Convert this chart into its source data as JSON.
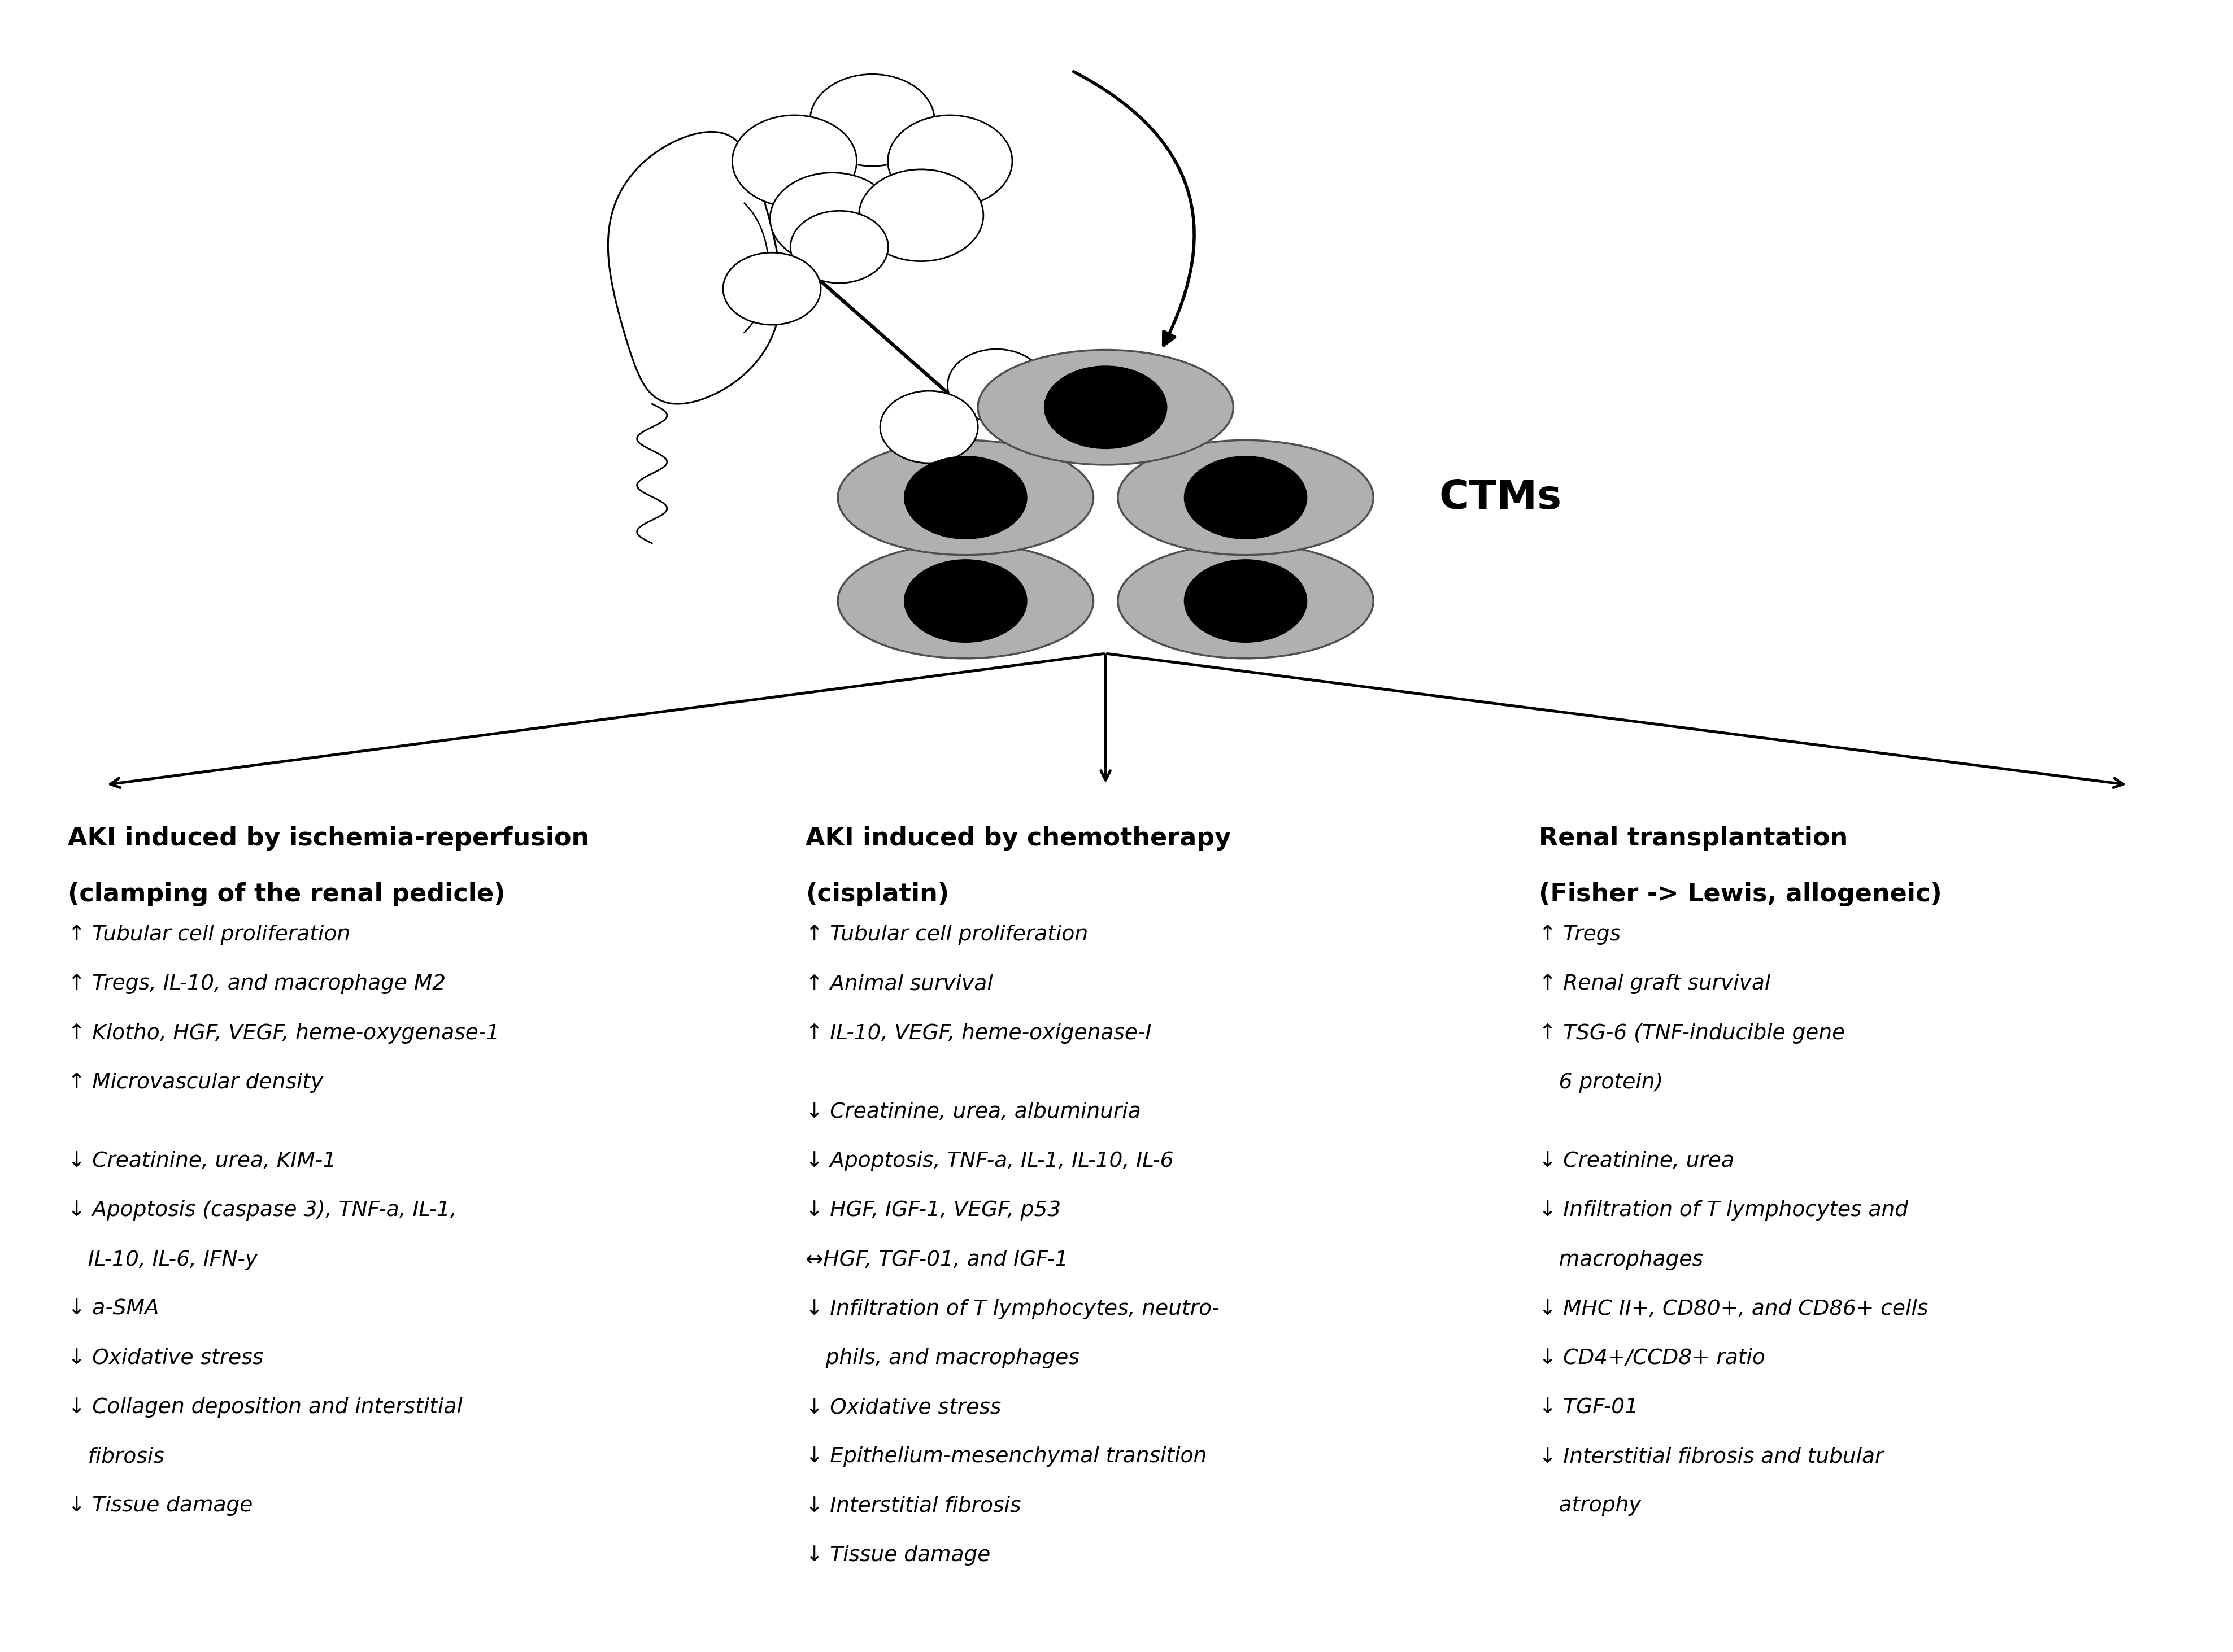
{
  "bg_color": "#ffffff",
  "ctms_label": "CTMs",
  "col1_header_line1": "AKI induced by ischemia-reperfusion",
  "col1_header_line2": "(clamping of the renal pedicle)",
  "col2_header_line1": "AKI induced by chemotherapy",
  "col2_header_line2": "(cisplatin)",
  "col3_header_line1": "Renal transplantation",
  "col3_header_line2": "(Fisher -> Lewis, allogeneic)",
  "col1_up": [
    "↑ Tubular cell proliferation",
    "↑ Tregs, IL-10, and macrophage M2",
    "↑ Klotho, HGF, VEGF, heme-oxygenase-1",
    "↑ Microvascular density"
  ],
  "col1_down": [
    "↓ Creatinine, urea, KIM-1",
    "↓ Apoptosis (caspase 3), TNF-a, IL-1,",
    "   IL-10, IL-6, IFN-y",
    "↓ a-SMA",
    "↓ Oxidative stress",
    "↓ Collagen deposition and interstitial",
    "   fibrosis",
    "↓ Tissue damage"
  ],
  "col2_up": [
    "↑ Tubular cell proliferation",
    "↑ Animal survival",
    "↑ IL-10, VEGF, heme-oxigenase-I"
  ],
  "col2_down": [
    "↓ Creatinine, urea, albuminuria",
    "↓ Apoptosis, TNF-a, IL-1, IL-10, IL-6",
    "↓ HGF, IGF-1, VEGF, p53",
    "↔HGF, TGF-01, and IGF-1",
    "↓ Infiltration of T lymphocytes, neutro-",
    "   phils, and macrophages",
    "↓ Oxidative stress",
    "↓ Epithelium-mesenchymal transition",
    "↓ Interstitial fibrosis",
    "↓ Tissue damage"
  ],
  "col3_up": [
    "↑ Tregs",
    "↑ Renal graft survival",
    "↑ TSG-6 (TNF-inducible gene",
    "   6 protein)"
  ],
  "col3_down": [
    "↓ Creatinine, urea",
    "↓ Infiltration of T lymphocytes and",
    "   macrophages",
    "↓ MHC II+, CD80+, and CD86+ cells",
    "↓ CD4+/CCD8+ ratio",
    "↓ TGF-01",
    "↓ Interstitial fibrosis and tubular",
    "   atrophy"
  ],
  "font_size_header": 32,
  "font_size_body": 27,
  "font_size_ctms": 52,
  "cell_gray": "#b0b0b0",
  "cell_edge": "#505050"
}
